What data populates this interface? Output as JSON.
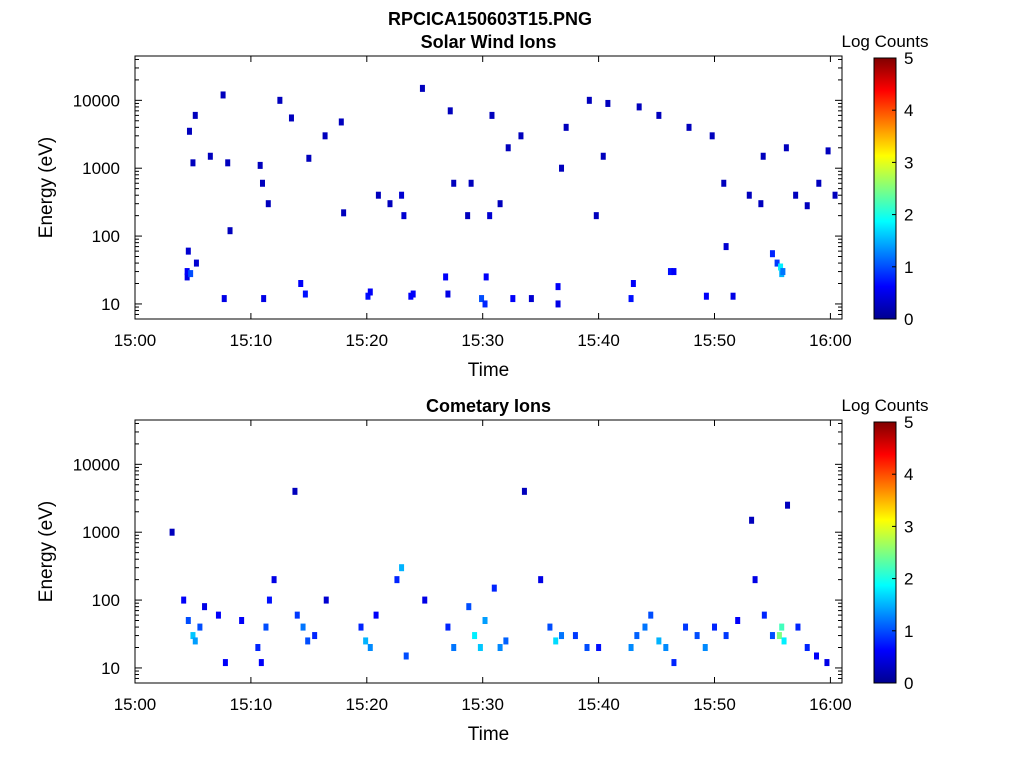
{
  "figure_title": "RPCICA150603T15.PNG",
  "chart_data": [
    {
      "type": "heatmap",
      "title": "Solar Wind Ions",
      "xlabel": "Time",
      "ylabel": "Energy (eV)",
      "x_ticks": [
        "15:00",
        "15:10",
        "15:20",
        "15:30",
        "15:40",
        "15:50",
        "16:00"
      ],
      "y_ticks": [
        "10",
        "100",
        "1000",
        "10000"
      ],
      "y_scale": "log",
      "ylim": [
        6,
        45000
      ],
      "xlim": [
        "15:00",
        "16:01"
      ],
      "colorbar": {
        "label": "Log Counts",
        "ticks": [
          "0",
          "1",
          "2",
          "3",
          "4",
          "5"
        ],
        "range": [
          0,
          5
        ],
        "colormap": "jet"
      },
      "points": [
        [
          4.5,
          25,
          0.5
        ],
        [
          4.5,
          30,
          0.6
        ],
        [
          4.6,
          60,
          0.4
        ],
        [
          4.8,
          28,
          1.0
        ],
        [
          4.7,
          3500,
          0.3
        ],
        [
          5.2,
          6000,
          0.3
        ],
        [
          5.0,
          1200,
          0.3
        ],
        [
          5.3,
          40,
          0.4
        ],
        [
          6.5,
          1500,
          0.3
        ],
        [
          7.6,
          12000,
          0.3
        ],
        [
          7.7,
          12,
          0.5
        ],
        [
          8.0,
          1200,
          0.3
        ],
        [
          8.2,
          120,
          0.3
        ],
        [
          10.8,
          1100,
          0.3
        ],
        [
          11.0,
          600,
          0.3
        ],
        [
          11.1,
          12,
          0.5
        ],
        [
          11.5,
          300,
          0.3
        ],
        [
          12.5,
          10000,
          0.3
        ],
        [
          13.5,
          5500,
          0.3
        ],
        [
          14.3,
          20,
          0.6
        ],
        [
          14.7,
          14,
          0.7
        ],
        [
          15.0,
          1400,
          0.3
        ],
        [
          16.4,
          3000,
          0.3
        ],
        [
          17.8,
          4800,
          0.3
        ],
        [
          18.0,
          220,
          0.3
        ],
        [
          20.1,
          13,
          0.7
        ],
        [
          20.3,
          15,
          0.6
        ],
        [
          21.0,
          400,
          0.3
        ],
        [
          22.0,
          300,
          0.3
        ],
        [
          23.0,
          400,
          0.4
        ],
        [
          23.2,
          200,
          0.4
        ],
        [
          23.8,
          13,
          0.6
        ],
        [
          24.0,
          14,
          0.6
        ],
        [
          24.8,
          15000,
          0.3
        ],
        [
          26.8,
          25,
          0.6
        ],
        [
          27.0,
          14,
          0.5
        ],
        [
          27.2,
          7000,
          0.3
        ],
        [
          27.5,
          600,
          0.3
        ],
        [
          28.7,
          200,
          0.3
        ],
        [
          29.0,
          600,
          0.3
        ],
        [
          29.9,
          12,
          1.0
        ],
        [
          30.2,
          10,
          0.8
        ],
        [
          30.3,
          25,
          0.6
        ],
        [
          30.6,
          200,
          0.4
        ],
        [
          30.8,
          6000,
          0.3
        ],
        [
          31.5,
          300,
          0.3
        ],
        [
          32.2,
          2000,
          0.3
        ],
        [
          32.6,
          12,
          0.6
        ],
        [
          33.3,
          3000,
          0.3
        ],
        [
          34.2,
          12,
          0.4
        ],
        [
          36.5,
          18,
          0.6
        ],
        [
          36.8,
          1000,
          0.3
        ],
        [
          36.5,
          10,
          0.5
        ],
        [
          37.2,
          4000,
          0.3
        ],
        [
          39.2,
          10000,
          0.3
        ],
        [
          39.8,
          200,
          0.3
        ],
        [
          40.8,
          9000,
          0.3
        ],
        [
          40.4,
          1500,
          0.3
        ],
        [
          42.8,
          12,
          0.7
        ],
        [
          43.0,
          20,
          0.6
        ],
        [
          43.5,
          8000,
          0.3
        ],
        [
          45.2,
          6000,
          0.3
        ],
        [
          46.2,
          30,
          0.7
        ],
        [
          46.5,
          30,
          0.6
        ],
        [
          47.8,
          4000,
          0.3
        ],
        [
          49.3,
          13,
          0.6
        ],
        [
          49.8,
          3000,
          0.3
        ],
        [
          50.8,
          600,
          0.3
        ],
        [
          51.0,
          70,
          0.4
        ],
        [
          51.6,
          13,
          0.5
        ],
        [
          53.0,
          400,
          0.3
        ],
        [
          54.0,
          300,
          0.3
        ],
        [
          54.2,
          1500,
          0.3
        ],
        [
          55.0,
          55,
          0.8
        ],
        [
          55.4,
          40,
          0.9
        ],
        [
          55.8,
          28,
          1.5
        ],
        [
          55.7,
          35,
          1.8
        ],
        [
          55.9,
          30,
          1.2
        ],
        [
          56.2,
          2000,
          0.3
        ],
        [
          57.0,
          400,
          0.3
        ],
        [
          58.0,
          280,
          0.3
        ],
        [
          59.0,
          600,
          0.3
        ],
        [
          59.8,
          1800,
          0.3
        ],
        [
          60.4,
          400,
          0.3
        ]
      ]
    },
    {
      "type": "heatmap",
      "title": "Cometary Ions",
      "xlabel": "Time",
      "ylabel": "Energy (eV)",
      "x_ticks": [
        "15:00",
        "15:10",
        "15:20",
        "15:30",
        "15:40",
        "15:50",
        "16:00"
      ],
      "y_ticks": [
        "10",
        "100",
        "1000",
        "10000"
      ],
      "y_scale": "log",
      "ylim": [
        6,
        45000
      ],
      "xlim": [
        "15:00",
        "16:01"
      ],
      "colorbar": {
        "label": "Log Counts",
        "ticks": [
          "0",
          "1",
          "2",
          "3",
          "4",
          "5"
        ],
        "range": [
          0,
          5
        ],
        "colormap": "jet"
      },
      "points": [
        [
          3.2,
          1000,
          0.3
        ],
        [
          4.2,
          100,
          0.6
        ],
        [
          4.6,
          50,
          1.0
        ],
        [
          5.0,
          30,
          1.6
        ],
        [
          5.2,
          25,
          1.4
        ],
        [
          5.6,
          40,
          1.0
        ],
        [
          6.0,
          80,
          0.5
        ],
        [
          7.2,
          60,
          0.6
        ],
        [
          7.8,
          12,
          0.6
        ],
        [
          9.2,
          50,
          0.6
        ],
        [
          10.6,
          20,
          0.8
        ],
        [
          10.9,
          12,
          0.6
        ],
        [
          11.3,
          40,
          1.0
        ],
        [
          11.6,
          100,
          0.7
        ],
        [
          12.0,
          200,
          0.5
        ],
        [
          13.8,
          4000,
          0.3
        ],
        [
          14.0,
          60,
          0.9
        ],
        [
          14.5,
          40,
          1.2
        ],
        [
          14.9,
          25,
          1.0
        ],
        [
          15.5,
          30,
          0.8
        ],
        [
          16.5,
          100,
          0.4
        ],
        [
          19.5,
          40,
          0.8
        ],
        [
          19.9,
          25,
          1.5
        ],
        [
          20.3,
          20,
          1.3
        ],
        [
          20.8,
          60,
          0.6
        ],
        [
          22.6,
          200,
          0.8
        ],
        [
          23.0,
          300,
          1.5
        ],
        [
          23.4,
          15,
          1.0
        ],
        [
          25.0,
          100,
          0.5
        ],
        [
          27.0,
          40,
          0.8
        ],
        [
          27.5,
          20,
          1.2
        ],
        [
          28.8,
          80,
          1.0
        ],
        [
          29.3,
          30,
          1.8
        ],
        [
          29.8,
          20,
          1.6
        ],
        [
          30.2,
          50,
          1.4
        ],
        [
          31.0,
          150,
          0.8
        ],
        [
          31.5,
          20,
          1.3
        ],
        [
          32.0,
          25,
          1.1
        ],
        [
          33.6,
          4000,
          0.3
        ],
        [
          35.0,
          200,
          0.5
        ],
        [
          35.8,
          40,
          1.0
        ],
        [
          36.3,
          25,
          1.7
        ],
        [
          36.8,
          30,
          1.2
        ],
        [
          38.0,
          30,
          0.9
        ],
        [
          39.0,
          20,
          1.0
        ],
        [
          40.0,
          20,
          0.7
        ],
        [
          42.8,
          20,
          1.3
        ],
        [
          43.3,
          30,
          1.1
        ],
        [
          44.0,
          40,
          1.2
        ],
        [
          44.5,
          60,
          1.0
        ],
        [
          45.2,
          25,
          1.5
        ],
        [
          45.8,
          20,
          1.3
        ],
        [
          46.5,
          12,
          0.8
        ],
        [
          47.5,
          40,
          0.9
        ],
        [
          48.5,
          30,
          1.0
        ],
        [
          49.2,
          20,
          1.3
        ],
        [
          50.0,
          40,
          0.8
        ],
        [
          51.0,
          30,
          0.9
        ],
        [
          52.0,
          50,
          0.6
        ],
        [
          53.2,
          1500,
          0.3
        ],
        [
          53.5,
          200,
          0.5
        ],
        [
          54.3,
          60,
          0.8
        ],
        [
          55.0,
          30,
          1.0
        ],
        [
          55.6,
          30,
          2.5
        ],
        [
          55.8,
          40,
          2.2
        ],
        [
          56.0,
          25,
          1.8
        ],
        [
          56.3,
          2500,
          0.3
        ],
        [
          57.2,
          40,
          0.8
        ],
        [
          58.0,
          20,
          0.8
        ],
        [
          58.8,
          15,
          0.6
        ],
        [
          59.7,
          12,
          0.5
        ]
      ]
    }
  ]
}
